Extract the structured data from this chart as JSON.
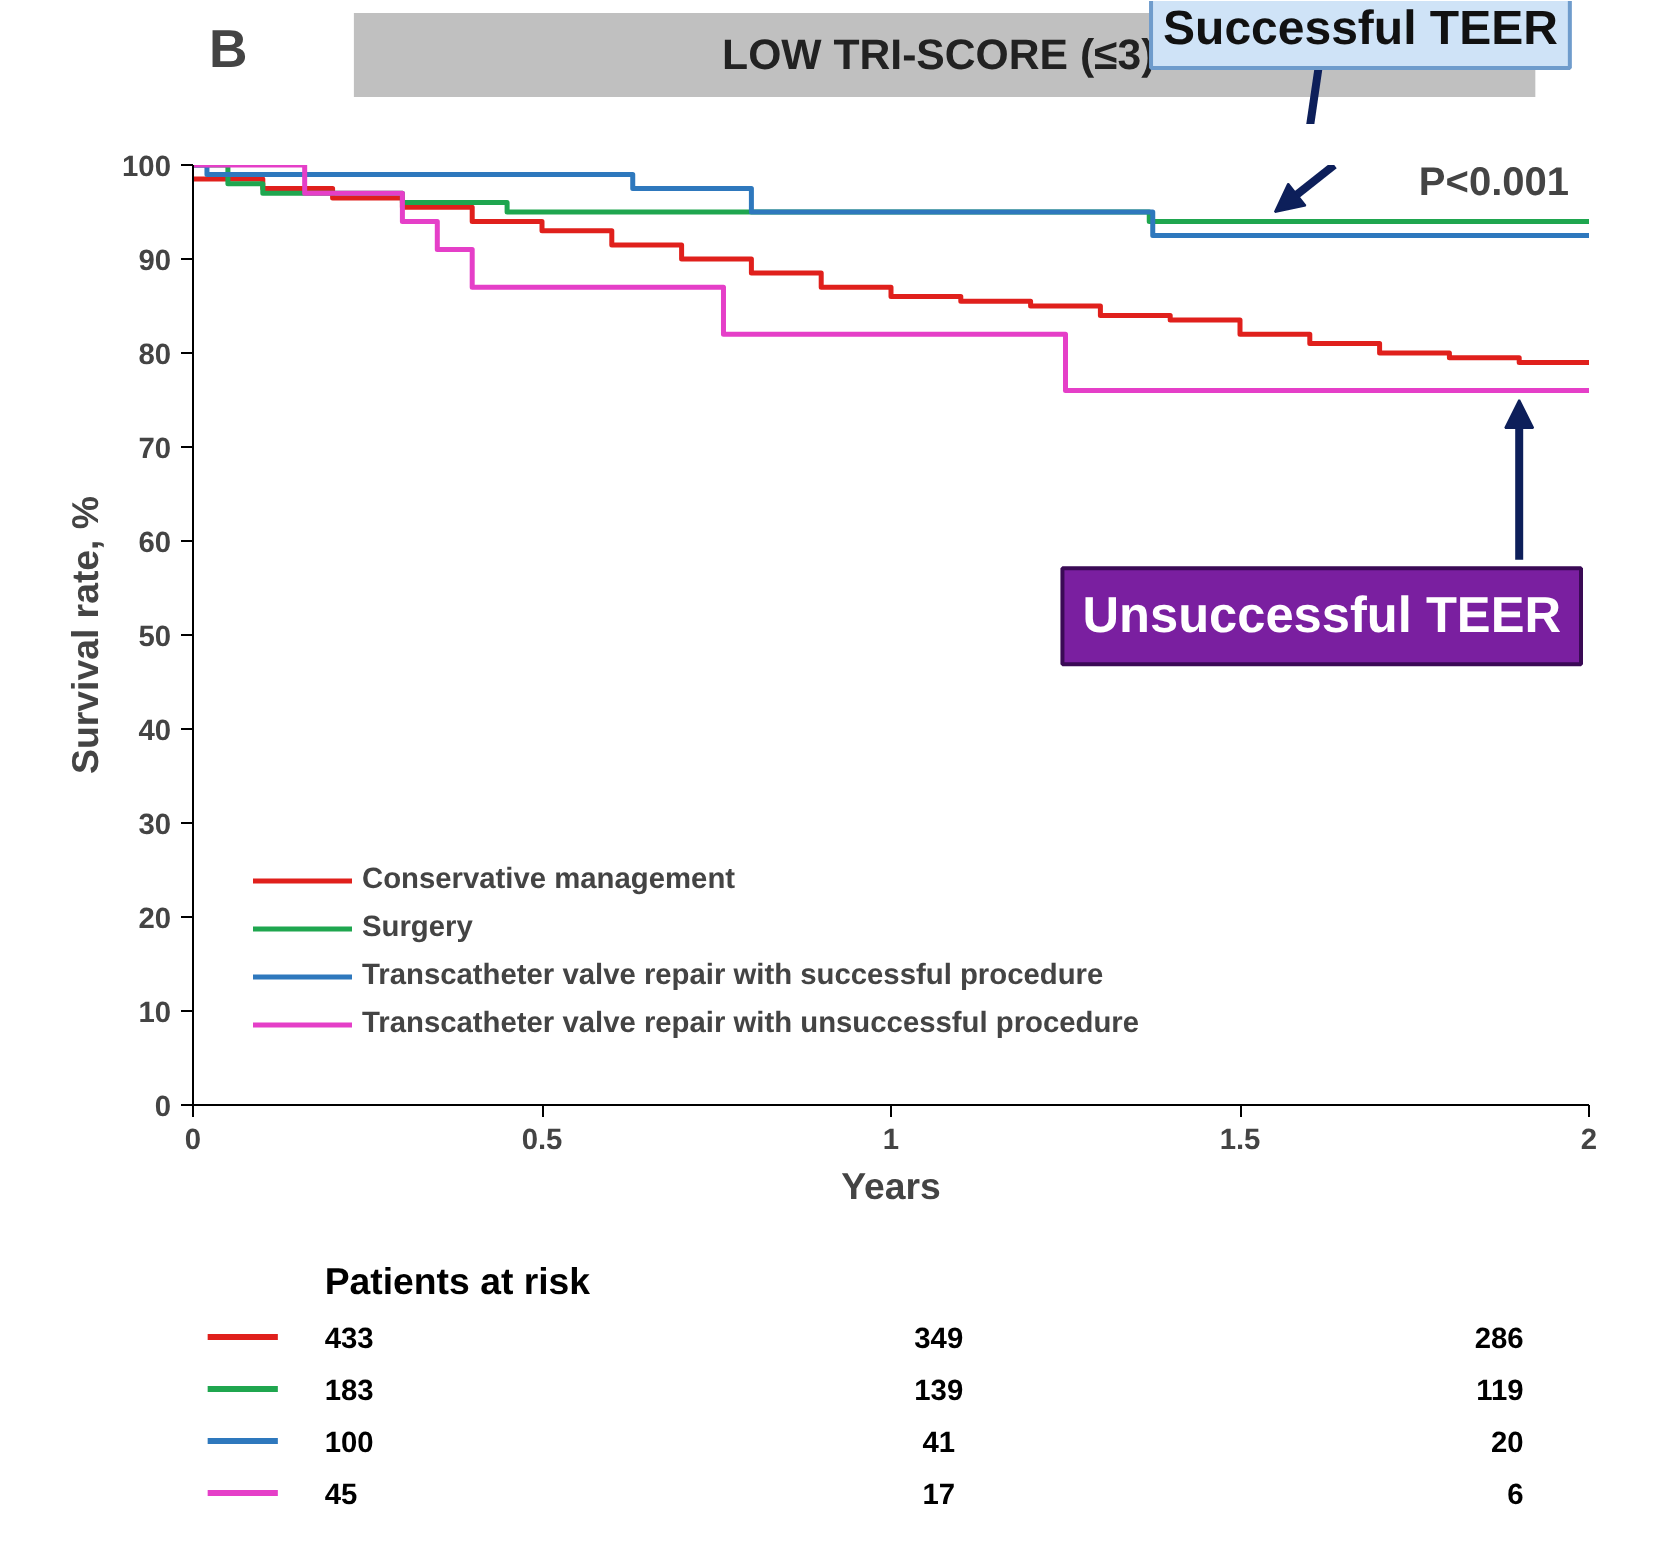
{
  "chart_data": {
    "type": "step",
    "title": "LOW TRI-SCORE (≤3)",
    "xlabel": "Years",
    "ylabel": "Survival rate, %",
    "xlim": [
      0,
      2
    ],
    "ylim": [
      0,
      100
    ],
    "xticks": [
      0,
      0.5,
      1,
      1.5,
      2
    ],
    "yticks": [
      0,
      10,
      20,
      30,
      40,
      50,
      60,
      70,
      80,
      90,
      100
    ],
    "grid": false,
    "legend": "bottom left",
    "line_style": "solid",
    "series": [
      {
        "name": "Conservative management",
        "color": "#e0201c",
        "x": [
          0,
          0.1,
          0.2,
          0.3,
          0.4,
          0.5,
          0.6,
          0.7,
          0.8,
          0.9,
          1.0,
          1.1,
          1.2,
          1.3,
          1.4,
          1.5,
          1.6,
          1.7,
          1.8,
          1.9,
          2.0
        ],
        "values": [
          98.5,
          97.5,
          96.5,
          95.5,
          94,
          93,
          91.5,
          90,
          88.5,
          87,
          86,
          85.5,
          85,
          84,
          83.5,
          82,
          81,
          80,
          79.5,
          79,
          79
        ]
      },
      {
        "name": "Surgery",
        "color": "#1fa64f",
        "x": [
          0,
          0.05,
          0.1,
          0.3,
          0.45,
          1.37,
          2.0
        ],
        "values": [
          100,
          98,
          97,
          96,
          95,
          94,
          94
        ]
      },
      {
        "name": "Transcatheter valve repair with successful procedure",
        "color": "#2e78bd",
        "x": [
          0,
          0.02,
          0.63,
          0.8,
          1.375,
          2.0
        ],
        "values": [
          100,
          99,
          97.5,
          95,
          92.5,
          92.5
        ]
      },
      {
        "name": "Transcatheter valve repair with unsuccessful procedure",
        "color": "#e53fc8",
        "x": [
          0,
          0.16,
          0.3,
          0.35,
          0.4,
          0.76,
          1.25,
          2.0
        ],
        "values": [
          100,
          97,
          94,
          91,
          87,
          82,
          76,
          76
        ]
      }
    ],
    "annotations": [
      "B",
      "P<0.001",
      "Successful TEER",
      {
        "text": "Unsuccessful TEER",
        "x": 1.9,
        "y": 76
      },
      "Patients at risk",
      "433",
      "349",
      "286",
      "183",
      "139",
      "119",
      "100",
      "41",
      "20",
      "45",
      "17",
      "6"
    ]
  }
}
